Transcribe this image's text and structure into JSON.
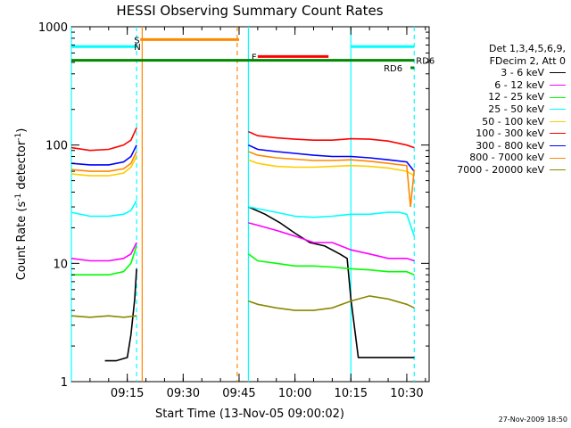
{
  "chart_data": {
    "type": "line",
    "title": "HESSI Observing Summary Count Rates",
    "xlabel": "Start Time (13-Nov-05 09:00:02)",
    "ylabel_parts": [
      "Count Rate (s",
      "-1",
      " detector",
      "-1",
      ")"
    ],
    "y_scale": "log",
    "ylim": [
      1,
      1000
    ],
    "xlim_minutes": [
      0,
      96
    ],
    "x_ticks": [
      {
        "minute": 15,
        "label": "09:15"
      },
      {
        "minute": 30,
        "label": "09:30"
      },
      {
        "minute": 45,
        "label": "09:45"
      },
      {
        "minute": 60,
        "label": "10:00"
      },
      {
        "minute": 75,
        "label": "10:15"
      },
      {
        "minute": 90,
        "label": "10:30"
      }
    ],
    "y_ticks": [
      {
        "value": 1,
        "label": "1"
      },
      {
        "value": 10,
        "label": "10"
      },
      {
        "value": 100,
        "label": "100"
      },
      {
        "value": 1000,
        "label": "1000"
      }
    ],
    "legend_header": [
      "Det 1,3,4,5,6,9,",
      "FDecim 2, Att 0"
    ],
    "series": [
      {
        "name": "3 - 6 keV",
        "color": "#000000",
        "segments": [
          [
            [
              9,
              1.5
            ],
            [
              12,
              1.5
            ],
            [
              15,
              1.6
            ],
            [
              16,
              2.5
            ],
            [
              17,
              5
            ],
            [
              17.5,
              9
            ]
          ],
          [
            [
              47.5,
              30
            ],
            [
              52,
              26
            ],
            [
              56,
              22
            ],
            [
              60,
              18
            ],
            [
              64,
              15
            ],
            [
              68,
              14
            ],
            [
              72,
              12
            ],
            [
              74,
              11
            ],
            [
              75,
              5
            ],
            [
              77,
              1.6
            ],
            [
              92,
              1.6
            ]
          ]
        ]
      },
      {
        "name": "6 - 12 keV",
        "color": "#ff00ff",
        "segments": [
          [
            [
              0,
              11
            ],
            [
              5,
              10.5
            ],
            [
              10,
              10.5
            ],
            [
              14,
              11
            ],
            [
              16,
              12
            ],
            [
              17.5,
              15
            ]
          ],
          [
            [
              47.5,
              22
            ],
            [
              50,
              21
            ],
            [
              55,
              19
            ],
            [
              60,
              17
            ],
            [
              65,
              15
            ],
            [
              70,
              15
            ],
            [
              75,
              13
            ],
            [
              80,
              12
            ],
            [
              85,
              11
            ],
            [
              90,
              11
            ],
            [
              92,
              10.5
            ]
          ]
        ]
      },
      {
        "name": "12 - 25 keV",
        "color": "#00ff00",
        "segments": [
          [
            [
              0,
              8
            ],
            [
              5,
              8
            ],
            [
              10,
              8
            ],
            [
              14,
              8.5
            ],
            [
              16,
              10
            ],
            [
              17.5,
              14
            ]
          ],
          [
            [
              47.5,
              12
            ],
            [
              50,
              10.5
            ],
            [
              55,
              10
            ],
            [
              60,
              9.5
            ],
            [
              65,
              9.5
            ],
            [
              70,
              9.3
            ],
            [
              75,
              9
            ],
            [
              80,
              8.8
            ],
            [
              85,
              8.5
            ],
            [
              90,
              8.5
            ],
            [
              92,
              8
            ]
          ]
        ]
      },
      {
        "name": "25 - 50 keV",
        "color": "#00ffff",
        "segments": [
          [
            [
              0,
              27
            ],
            [
              5,
              25
            ],
            [
              10,
              25
            ],
            [
              14,
              26
            ],
            [
              16,
              28
            ],
            [
              17.5,
              34
            ]
          ],
          [
            [
              47.5,
              30
            ],
            [
              50,
              29
            ],
            [
              55,
              27
            ],
            [
              60,
              25
            ],
            [
              65,
              24.5
            ],
            [
              70,
              25
            ],
            [
              75,
              26
            ],
            [
              80,
              26
            ],
            [
              85,
              27
            ],
            [
              88,
              27
            ],
            [
              90,
              26
            ],
            [
              92,
              17
            ]
          ]
        ]
      },
      {
        "name": "50 - 100 keV",
        "color": "#ffcc00",
        "segments": [
          [
            [
              0,
              57
            ],
            [
              5,
              55
            ],
            [
              10,
              55
            ],
            [
              14,
              58
            ],
            [
              16,
              65
            ],
            [
              17.5,
              80
            ]
          ],
          [
            [
              47.5,
              75
            ],
            [
              50,
              70
            ],
            [
              55,
              66
            ],
            [
              60,
              65
            ],
            [
              65,
              65
            ],
            [
              70,
              66
            ],
            [
              75,
              67
            ],
            [
              80,
              66
            ],
            [
              85,
              64
            ],
            [
              90,
              60
            ],
            [
              92,
              55
            ]
          ]
        ]
      },
      {
        "name": "100 - 300 keV",
        "color": "#ff0000",
        "segments": [
          [
            [
              0,
              95
            ],
            [
              5,
              90
            ],
            [
              10,
              92
            ],
            [
              14,
              100
            ],
            [
              16,
              110
            ],
            [
              17.5,
              140
            ]
          ],
          [
            [
              47.5,
              130
            ],
            [
              50,
              120
            ],
            [
              55,
              115
            ],
            [
              60,
              112
            ],
            [
              65,
              110
            ],
            [
              70,
              110
            ],
            [
              75,
              113
            ],
            [
              80,
              112
            ],
            [
              85,
              108
            ],
            [
              90,
              100
            ],
            [
              92,
              95
            ]
          ]
        ]
      },
      {
        "name": "300 - 800 keV",
        "color": "#0000ff",
        "segments": [
          [
            [
              0,
              70
            ],
            [
              5,
              68
            ],
            [
              10,
              68
            ],
            [
              14,
              72
            ],
            [
              16,
              80
            ],
            [
              17.5,
              100
            ]
          ],
          [
            [
              47.5,
              100
            ],
            [
              50,
              92
            ],
            [
              55,
              88
            ],
            [
              60,
              85
            ],
            [
              65,
              82
            ],
            [
              70,
              80
            ],
            [
              75,
              80
            ],
            [
              80,
              78
            ],
            [
              85,
              75
            ],
            [
              90,
              72
            ],
            [
              92,
              60
            ]
          ]
        ]
      },
      {
        "name": "800 - 7000 keV",
        "color": "#ff8800",
        "segments": [
          [
            [
              0,
              62
            ],
            [
              5,
              60
            ],
            [
              10,
              60
            ],
            [
              14,
              63
            ],
            [
              16,
              70
            ],
            [
              17.5,
              88
            ]
          ],
          [
            [
              47.5,
              88
            ],
            [
              50,
              82
            ],
            [
              55,
              78
            ],
            [
              60,
              76
            ],
            [
              65,
              74
            ],
            [
              70,
              74
            ],
            [
              75,
              75
            ],
            [
              80,
              73
            ],
            [
              85,
              70
            ],
            [
              90,
              67
            ],
            [
              91,
              30
            ],
            [
              92,
              62
            ]
          ]
        ]
      },
      {
        "name": "7000 - 20000 keV",
        "color": "#888800",
        "segments": [
          [
            [
              0,
              3.6
            ],
            [
              5,
              3.5
            ],
            [
              10,
              3.6
            ],
            [
              14,
              3.5
            ],
            [
              17.5,
              3.6
            ]
          ],
          [
            [
              47.5,
              4.8
            ],
            [
              50,
              4.5
            ],
            [
              55,
              4.2
            ],
            [
              60,
              4.0
            ],
            [
              65,
              4.0
            ],
            [
              70,
              4.2
            ],
            [
              75,
              4.8
            ],
            [
              80,
              5.3
            ],
            [
              85,
              5.0
            ],
            [
              90,
              4.5
            ],
            [
              92,
              4.2
            ]
          ]
        ]
      }
    ],
    "flag_bars": [
      {
        "label": "",
        "color": "#00ffff",
        "start_min": 0,
        "end_min": 17.5,
        "y_value": 680
      },
      {
        "label": "",
        "color": "#00ffff",
        "start_min": 75,
        "end_min": 92,
        "y_value": 680
      },
      {
        "label": "S",
        "color": "#ff8800",
        "start_min": 18.5,
        "end_min": 45,
        "y_value": 780
      },
      {
        "label": "N",
        "color": "#00ffff",
        "start_min": 18.5,
        "end_min": 18.5,
        "y_value": 680
      },
      {
        "label": "F",
        "color": "#ff0000",
        "start_min": 50,
        "end_min": 69,
        "y_value": 560
      },
      {
        "label": "RD6",
        "color": "#008800",
        "start_min": 0,
        "end_min": 92,
        "y_value": 520
      },
      {
        "label": "RD6",
        "color": "#008800",
        "start_min": 91,
        "end_min": 92,
        "y_value": 450
      }
    ],
    "vertical_markers": [
      {
        "minute": 0,
        "color": "#00ffff",
        "style": "solid"
      },
      {
        "minute": 17.5,
        "color": "#00ffff",
        "style": "dashed"
      },
      {
        "minute": 19,
        "color": "#ff8800",
        "style": "solid"
      },
      {
        "minute": 44.5,
        "color": "#ff8800",
        "style": "dashed"
      },
      {
        "minute": 47.5,
        "color": "#00ffff",
        "style": "solid"
      },
      {
        "minute": 75,
        "color": "#00ffff",
        "style": "solid"
      },
      {
        "minute": 92,
        "color": "#00ffff",
        "style": "dashed"
      }
    ],
    "timestamp": "27-Nov-2009 18:50"
  }
}
